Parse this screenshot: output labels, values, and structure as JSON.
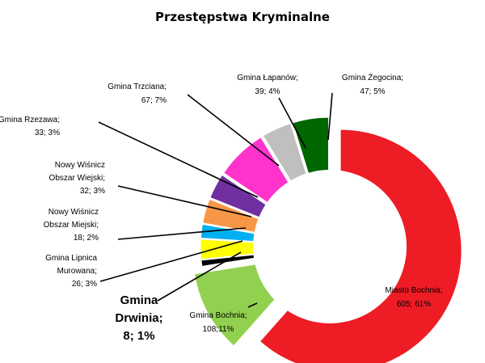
{
  "chart_data": {
    "type": "pie",
    "title": "Przestępstwa  Kryminalne",
    "categories": [
      "Miasto Bochnia",
      "Gmina Bochnia",
      "Gmina Drwinia",
      "Gmina Lipnica Murowana",
      "Nowy Wiśnicz Obszar Miejski",
      "Nowy Wiśnicz Obszar Wiejski",
      "Gmina Rzezawa",
      "Gmina Trzciana",
      "Gmina Łapanów",
      "Gmina Żegocina"
    ],
    "values": [
      605,
      108,
      8,
      26,
      18,
      32,
      33,
      67,
      39,
      47
    ],
    "percents": [
      61,
      11,
      1,
      3,
      2,
      3,
      3,
      7,
      4,
      5
    ],
    "colors": [
      "#ee1c25",
      "#92d050",
      "#000000",
      "#ffff00",
      "#00b0f0",
      "#f79646",
      "#7030a0",
      "#ff33cc",
      "#bfbfbf",
      "#006600"
    ],
    "labels": [
      {
        "lines": [
          "Miasto Bochnia;",
          "605; 61%"
        ]
      },
      {
        "lines": [
          "Gmina Bochnia;",
          "108;11%"
        ]
      },
      {
        "lines": [
          "Gmina",
          "Drwinia;",
          "8; 1%"
        ]
      },
      {
        "lines": [
          "Gmina Lipnica",
          "Murowana;",
          "26; 3%"
        ]
      },
      {
        "lines": [
          "Nowy Wiśnicz",
          "Obszar Miejski;",
          "18; 2%"
        ]
      },
      {
        "lines": [
          "Nowy Wiśnicz",
          "Obszar Wiejski;",
          "32; 3%"
        ]
      },
      {
        "lines": [
          "Gmina Rzezawa;",
          "33; 3%"
        ]
      },
      {
        "lines": [
          "Gmina Trzciana;",
          "67; 7%"
        ]
      },
      {
        "lines": [
          "Gmina Łapanów;",
          "39; 4%"
        ]
      },
      {
        "lines": [
          "Gmina Żegocina;",
          "47; 5%"
        ]
      }
    ],
    "legend": "none"
  }
}
